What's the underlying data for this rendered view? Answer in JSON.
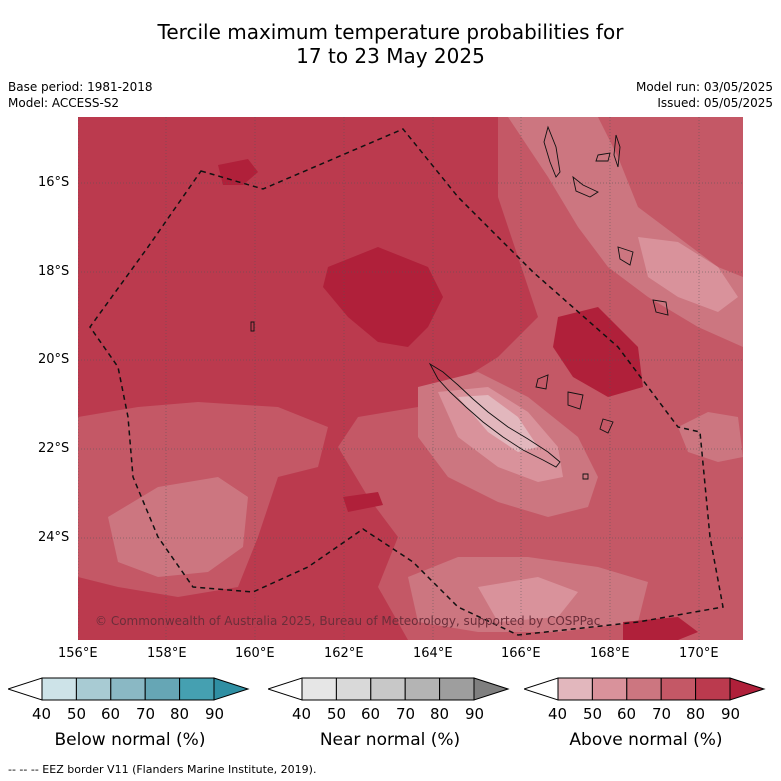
{
  "title": {
    "line1": "Tercile maximum temperature probabilities for",
    "line2": "17 to 23 May 2025"
  },
  "meta": {
    "base_period": "Base period: 1981-2018",
    "model": "Model: ACCESS-S2",
    "model_run": "Model run: 03/05/2025",
    "issued": "Issued: 05/05/2025"
  },
  "axes": {
    "lat_labels": [
      "16°S",
      "18°S",
      "20°S",
      "22°S",
      "24°S"
    ],
    "lon_labels": [
      "156°E",
      "158°E",
      "160°E",
      "162°E",
      "164°E",
      "166°E",
      "168°E",
      "170°E"
    ]
  },
  "copyright": "© Commonwealth of Australia 2025, Bureau of Meteorology, supported by COSPPac",
  "legends": [
    {
      "title": "Below normal (%)",
      "ticks": [
        "40",
        "50",
        "60",
        "70",
        "80",
        "90"
      ],
      "colors": [
        "#ffffff",
        "#cde3e8",
        "#a8cbd3",
        "#8ab8c4",
        "#66a6b5",
        "#45a0b1",
        "#2f8fa3"
      ]
    },
    {
      "title": "Near normal (%)",
      "ticks": [
        "40",
        "50",
        "60",
        "70",
        "80",
        "90"
      ],
      "colors": [
        "#ffffff",
        "#e6e6e6",
        "#d9d9d9",
        "#c8c8c8",
        "#b4b4b4",
        "#9e9e9e",
        "#7f7f7f"
      ]
    },
    {
      "title": "Above normal (%)",
      "ticks": [
        "40",
        "50",
        "60",
        "70",
        "80",
        "90"
      ],
      "colors": [
        "#ffffff",
        "#e2b7bd",
        "#d9929b",
        "#cc7680",
        "#c45866",
        "#bb3a4e",
        "#b0203a"
      ]
    }
  ],
  "footnote": "-- -- -- EEZ border V11 (Flanders Marine Institute, 2019)."
}
